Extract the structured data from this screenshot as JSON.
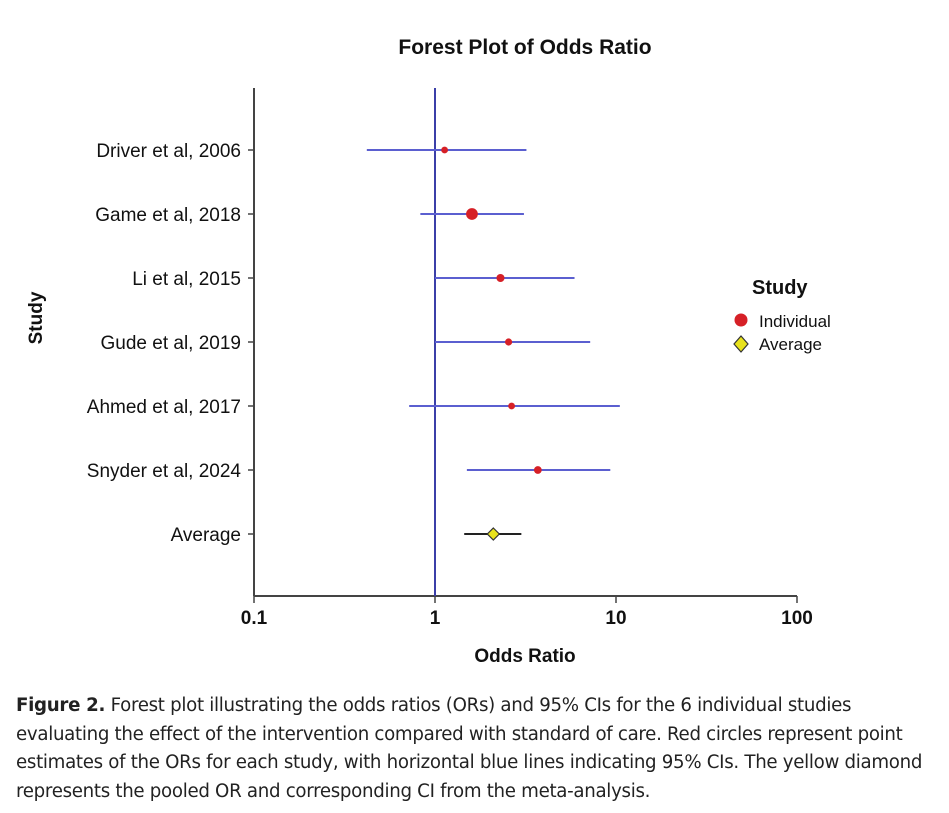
{
  "chart_data": {
    "type": "forest",
    "title": "Forest Plot of Odds Ratio",
    "xlabel": "Odds Ratio",
    "ylabel": "Study",
    "x_scale": "log",
    "xlim": [
      0.1,
      100
    ],
    "x_ticks": [
      "0.1",
      "1",
      "10",
      "100"
    ],
    "reference_line": 1,
    "legend": {
      "title": "Study",
      "position": "right",
      "items": [
        {
          "label": "Individual",
          "color": "#d62027",
          "shape": "circle"
        },
        {
          "label": "Average",
          "color": "#e8e21c",
          "shape": "diamond"
        }
      ]
    },
    "studies": [
      {
        "label": "Driver et al, 2006",
        "or": 1.13,
        "lower": 0.42,
        "upper": 3.2,
        "type": "individual",
        "weight": 1
      },
      {
        "label": "Game et al, 2018",
        "or": 1.6,
        "lower": 0.83,
        "upper": 3.1,
        "type": "individual",
        "weight": 3
      },
      {
        "label": "Li et al, 2015",
        "or": 2.3,
        "lower": 1.0,
        "upper": 5.9,
        "type": "individual",
        "weight": 1.4
      },
      {
        "label": "Gude et al, 2019",
        "or": 2.55,
        "lower": 1.0,
        "upper": 7.2,
        "type": "individual",
        "weight": 1.1
      },
      {
        "label": "Ahmed et al, 2017",
        "or": 2.65,
        "lower": 0.72,
        "upper": 10.5,
        "type": "individual",
        "weight": 1
      },
      {
        "label": "Snyder et al, 2024",
        "or": 3.7,
        "lower": 1.5,
        "upper": 9.3,
        "type": "individual",
        "weight": 1.3
      },
      {
        "label": "Average",
        "or": 2.1,
        "lower": 1.45,
        "upper": 3.0,
        "type": "average",
        "weight": 1
      }
    ],
    "colors": {
      "ci_line": "#5b5fd0",
      "average_ci_line": "#222222",
      "reference_line": "#3b3fa8",
      "point": "#d62027",
      "average_point": "#e8e21c"
    }
  },
  "caption": {
    "label": "Figure 2.",
    "text": " Forest plot illustrating the odds ratios (ORs) and 95% CIs for the 6 individual studies evaluating the effect of the intervention compared with standard of care. Red circles represent point estimates of the ORs for each study, with horizontal blue lines indicating 95% CIs. The yellow diamond represents the pooled OR and corresponding CI from the meta-analysis."
  }
}
